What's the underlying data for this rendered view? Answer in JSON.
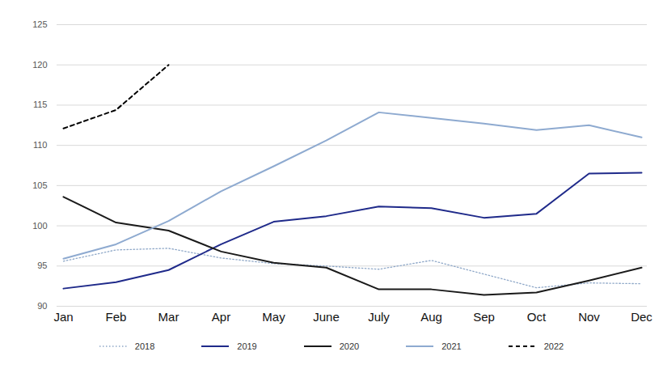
{
  "chart_data": {
    "type": "line",
    "categories": [
      "Jan",
      "Feb",
      "Mar",
      "Apr",
      "May",
      "June",
      "July",
      "Aug",
      "Sep",
      "Oct",
      "Nov",
      "Dec"
    ],
    "ylim": [
      90,
      125
    ],
    "yticks": [
      90,
      95,
      100,
      105,
      110,
      115,
      120,
      125
    ],
    "grid": true,
    "legend": "bottom",
    "series": [
      {
        "name": "2018",
        "color": "#8fa8c8",
        "line_style": "dotted",
        "values": [
          95.6,
          97.0,
          97.2,
          96.0,
          95.3,
          95.0,
          94.6,
          95.7,
          94.0,
          92.3,
          92.9,
          92.8
        ]
      },
      {
        "name": "2019",
        "color": "#1f2a8a",
        "line_style": "solid",
        "values": [
          92.2,
          93.0,
          94.5,
          97.7,
          100.5,
          101.2,
          102.4,
          102.2,
          101.0,
          101.5,
          106.5,
          106.6
        ]
      },
      {
        "name": "2020",
        "color": "#1a1a1a",
        "line_style": "solid",
        "values": [
          103.6,
          100.4,
          99.4,
          96.8,
          95.4,
          94.8,
          92.1,
          92.1,
          91.4,
          91.7,
          93.2,
          94.8
        ]
      },
      {
        "name": "2021",
        "color": "#8eaad0",
        "line_style": "solid",
        "values": [
          95.9,
          97.7,
          100.6,
          104.3,
          107.4,
          110.6,
          114.1,
          113.4,
          112.7,
          111.9,
          112.5,
          111.0
        ]
      },
      {
        "name": "2022",
        "color": "#000000",
        "line_style": "dashed",
        "values": [
          112.1,
          114.4,
          120.0,
          null,
          null,
          null,
          null,
          null,
          null,
          null,
          null,
          null
        ]
      }
    ]
  }
}
